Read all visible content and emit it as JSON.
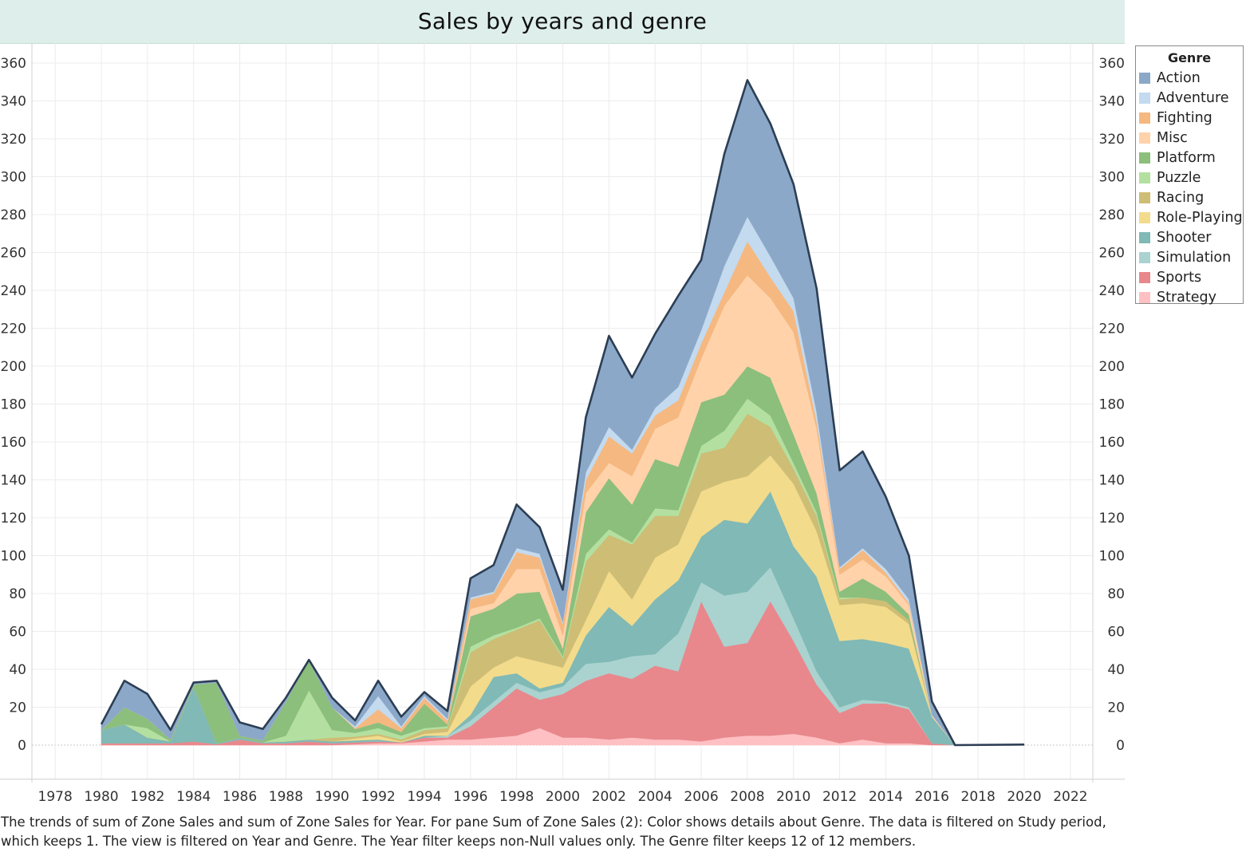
{
  "title": "Sales by years and genre",
  "caption": "The trends of sum of Zone Sales and sum of Zone Sales for Year.  For pane Sum of Zone Sales (2):  Color shows details about Genre. The data is filtered on Study period, which keeps 1. The view is filtered on Year and Genre. The Year filter keeps non-Null values only. The Genre filter keeps 12 of 12 members.",
  "legend_title": "Genre",
  "chart_data": {
    "type": "area",
    "title": "Sales by years and genre",
    "stacked": true,
    "xlim": [
      1977,
      2023
    ],
    "ylim": [
      -18,
      368
    ],
    "x_ticks": [
      1978,
      1980,
      1982,
      1984,
      1986,
      1988,
      1990,
      1992,
      1994,
      1996,
      1998,
      2000,
      2002,
      2004,
      2006,
      2008,
      2010,
      2012,
      2014,
      2016,
      2018,
      2020,
      2022
    ],
    "y_ticks": [
      0,
      20,
      40,
      60,
      80,
      100,
      120,
      140,
      160,
      180,
      200,
      220,
      240,
      260,
      280,
      300,
      320,
      340,
      360
    ],
    "grid": true,
    "legend_position": "right",
    "total_line_color": "#2c3e55",
    "x": [
      1980,
      1981,
      1982,
      1983,
      1984,
      1985,
      1986,
      1987,
      1988,
      1989,
      1990,
      1991,
      1992,
      1993,
      1994,
      1995,
      1996,
      1997,
      1998,
      1999,
      2000,
      2001,
      2002,
      2003,
      2004,
      2005,
      2006,
      2007,
      2008,
      2009,
      2010,
      2011,
      2012,
      2013,
      2014,
      2015,
      2016,
      2017,
      2020
    ],
    "series": [
      {
        "name": "Strategy",
        "color": "#ffc0c3",
        "values": [
          0,
          0,
          0,
          0,
          0,
          0,
          0,
          0,
          0,
          0,
          0,
          0.5,
          1,
          1,
          2,
          3,
          3,
          4,
          5,
          9,
          4,
          4,
          3,
          4,
          3,
          3,
          2,
          4,
          5,
          5,
          6,
          4,
          1,
          3,
          1,
          1,
          0,
          0,
          0
        ]
      },
      {
        "name": "Sports",
        "color": "#e8888c",
        "values": [
          1,
          1,
          1,
          1,
          2,
          0.5,
          3,
          1,
          1,
          2,
          1,
          1,
          1,
          0.5,
          2,
          1,
          7,
          16,
          25,
          15,
          23,
          30,
          35,
          31,
          39,
          36,
          74,
          48,
          49,
          71,
          49,
          28,
          16,
          19,
          21,
          18,
          1,
          0,
          0
        ]
      },
      {
        "name": "Simulation",
        "color": "#aad3d0",
        "values": [
          0,
          0,
          0,
          0,
          0,
          0,
          0,
          0,
          0,
          0,
          0,
          0,
          0,
          0,
          0,
          1,
          3,
          3,
          3,
          4,
          4,
          9,
          6,
          12,
          6,
          20,
          10,
          27,
          27,
          18,
          12,
          7,
          3,
          2,
          1,
          1,
          0,
          0,
          0
        ]
      },
      {
        "name": "Shooter",
        "color": "#80b9b5",
        "values": [
          7,
          10,
          3,
          1,
          29,
          0.5,
          1,
          0.5,
          1,
          1,
          1,
          1,
          1,
          0,
          1,
          0,
          3,
          13,
          5,
          2,
          2,
          15,
          29,
          16,
          29,
          28,
          24,
          40,
          36,
          40,
          38,
          50,
          35,
          32,
          31,
          31,
          14,
          0,
          0
        ]
      },
      {
        "name": "Role-Playing",
        "color": "#f3db8c",
        "values": [
          0,
          0,
          0,
          0,
          0,
          0,
          0,
          0,
          0,
          0,
          0,
          1,
          2,
          0.5,
          1,
          2,
          15,
          5,
          9,
          14,
          8,
          8,
          19,
          14,
          22,
          19,
          24,
          20,
          25,
          19,
          33,
          24,
          19,
          19,
          19,
          13,
          0,
          0,
          0
        ]
      },
      {
        "name": "Racing",
        "color": "#cebd75",
        "values": [
          0,
          0,
          0,
          0,
          0,
          0,
          0,
          0,
          0,
          0,
          2,
          1,
          1,
          1,
          2,
          2,
          18,
          15,
          14,
          22,
          5,
          31,
          19,
          29,
          22,
          15,
          20,
          18,
          33,
          15,
          8,
          8,
          3,
          3,
          3,
          2,
          0,
          0,
          0
        ]
      },
      {
        "name": "Puzzle",
        "color": "#b3e0a0",
        "values": [
          0,
          0,
          5,
          0,
          0,
          0,
          0,
          0,
          3,
          26,
          4,
          2,
          3,
          2,
          1,
          1,
          3,
          2,
          1,
          1,
          1,
          4,
          3,
          1,
          4,
          3,
          4,
          9,
          8,
          6,
          3,
          2,
          1,
          0,
          0,
          0,
          0,
          0,
          0
        ]
      },
      {
        "name": "Platform",
        "color": "#8cbe7c",
        "values": [
          0,
          9,
          5,
          1,
          1,
          32,
          1,
          1,
          18,
          16,
          12,
          2,
          3,
          2,
          13,
          1,
          16,
          14,
          18,
          14,
          4,
          22,
          27,
          20,
          26,
          23,
          23,
          19,
          17,
          20,
          15,
          10,
          3,
          10,
          5,
          3,
          0,
          0,
          0
        ]
      },
      {
        "name": "Misc",
        "color": "#ffd2aa",
        "values": [
          0,
          0,
          0,
          0,
          0,
          0,
          0,
          0,
          0,
          0,
          0,
          0,
          0,
          0,
          0,
          0,
          4,
          3,
          13,
          12,
          7,
          10,
          8,
          15,
          16,
          26,
          23,
          47,
          48,
          42,
          54,
          34,
          9,
          10,
          8,
          5,
          1,
          0,
          0
        ]
      },
      {
        "name": "Fighting",
        "color": "#f5b880",
        "values": [
          0,
          0,
          0,
          0,
          0,
          0,
          0,
          0,
          0,
          0,
          0,
          0.5,
          7,
          2,
          3,
          2,
          5,
          5,
          9,
          6,
          6,
          7,
          14,
          12,
          7,
          9,
          8,
          7,
          18,
          11,
          11,
          4,
          3,
          5,
          2,
          1,
          0,
          0,
          0
        ]
      },
      {
        "name": "Adventure",
        "color": "#c3daef",
        "values": [
          0,
          0,
          0,
          0,
          0,
          0,
          0,
          0,
          0,
          0,
          0,
          1,
          7,
          1,
          1,
          1,
          1,
          1,
          2,
          2,
          1,
          4,
          5,
          2,
          4,
          7,
          7,
          14,
          13,
          11,
          7,
          5,
          1,
          1,
          2,
          2,
          0,
          0,
          0
        ]
      },
      {
        "name": "Action",
        "color": "#8ca8c8",
        "values": [
          3,
          14,
          13,
          5,
          1,
          1,
          7,
          6,
          2,
          0,
          5,
          3,
          8,
          5,
          2,
          4,
          10,
          14,
          23,
          14,
          17,
          29,
          48,
          38,
          39,
          48,
          37,
          59,
          72,
          70,
          60,
          65,
          51,
          51,
          38,
          23,
          7,
          0,
          0.3
        ]
      }
    ]
  }
}
